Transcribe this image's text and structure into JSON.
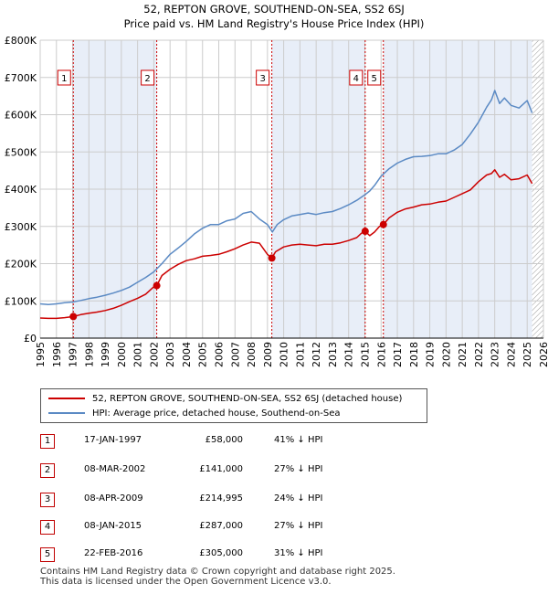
{
  "title_line1": "52, REPTON GROVE, SOUTHEND-ON-SEA, SS2 6SJ",
  "title_line2": "Price paid vs. HM Land Registry's House Price Index (HPI)",
  "colors": {
    "property": "#cc0000",
    "hpi": "#5b8ac4",
    "shade": "#e8eef8",
    "grid": "#cccccc",
    "vline": "#cc0000"
  },
  "legend": {
    "property_label": "52, REPTON GROVE, SOUTHEND-ON-SEA, SS2 6SJ (detached house)",
    "hpi_label": "HPI: Average price, detached house, Southend-on-Sea"
  },
  "sales": [
    {
      "num": "1",
      "date": "17-JAN-1997",
      "price": "£58,000",
      "hpi": "41% ↓ HPI"
    },
    {
      "num": "2",
      "date": "08-MAR-2002",
      "price": "£141,000",
      "hpi": "27% ↓ HPI"
    },
    {
      "num": "3",
      "date": "08-APR-2009",
      "price": "£214,995",
      "hpi": "24% ↓ HPI"
    },
    {
      "num": "4",
      "date": "08-JAN-2015",
      "price": "£287,000",
      "hpi": "27% ↓ HPI"
    },
    {
      "num": "5",
      "date": "22-FEB-2016",
      "price": "£305,000",
      "hpi": "31% ↓ HPI"
    }
  ],
  "footer": {
    "line1": "Contains HM Land Registry data © Crown copyright and database right 2025.",
    "line2": "This data is licensed under the Open Government Licence v3.0."
  },
  "chart_data": {
    "type": "line",
    "title": "52, REPTON GROVE, SOUTHEND-ON-SEA, SS2 6SJ",
    "subtitle": "Price paid vs. HM Land Registry's House Price Index (HPI)",
    "xlim": [
      1995,
      2026
    ],
    "ylim": [
      0,
      800000
    ],
    "y_ticks": [
      0,
      100000,
      200000,
      300000,
      400000,
      500000,
      600000,
      700000,
      800000
    ],
    "y_tick_labels": [
      "£0",
      "£100K",
      "£200K",
      "£300K",
      "£400K",
      "£500K",
      "£600K",
      "£700K",
      "£800K"
    ],
    "x_ticks": [
      1995,
      1996,
      1997,
      1998,
      1999,
      2000,
      2001,
      2002,
      2003,
      2004,
      2005,
      2006,
      2007,
      2008,
      2009,
      2010,
      2011,
      2012,
      2013,
      2014,
      2015,
      2016,
      2017,
      2018,
      2019,
      2020,
      2021,
      2022,
      2023,
      2024,
      2025,
      2026
    ],
    "x_tick_labels": [
      "1995",
      "1996",
      "1997",
      "1998",
      "1999",
      "2000",
      "2001",
      "2002",
      "2003",
      "2004",
      "2005",
      "2006",
      "2007",
      "2008",
      "2009",
      "2010",
      "2011",
      "2012",
      "2013",
      "2014",
      "2015",
      "2016",
      "2017",
      "2018",
      "2019",
      "2020",
      "2021",
      "2022",
      "2023",
      "2024",
      "2025",
      "2026"
    ],
    "shaded_ranges": [
      [
        1997.04,
        2002.18
      ],
      [
        2009.27,
        2015.02
      ],
      [
        2016.14,
        2025.3
      ]
    ],
    "hatched_after": 2025.3,
    "sale_markers": [
      {
        "label": "1",
        "x": 1997.04,
        "y": 58000
      },
      {
        "label": "2",
        "x": 2002.18,
        "y": 141000
      },
      {
        "label": "3",
        "x": 2009.27,
        "y": 214995
      },
      {
        "label": "4",
        "x": 2015.02,
        "y": 287000
      },
      {
        "label": "5",
        "x": 2016.14,
        "y": 305000
      }
    ],
    "series": [
      {
        "name": "52, REPTON GROVE, SOUTHEND-ON-SEA, SS2 6SJ (detached house)",
        "x": [
          1995.0,
          1995.5,
          1996.0,
          1996.5,
          1997.04,
          1997.5,
          1998.0,
          1998.5,
          1999.0,
          1999.5,
          2000.0,
          2000.5,
          2001.0,
          2001.5,
          2002.0,
          2002.18,
          2002.5,
          2003.0,
          2003.5,
          2004.0,
          2004.5,
          2005.0,
          2005.5,
          2006.0,
          2006.5,
          2007.0,
          2007.5,
          2008.0,
          2008.5,
          2009.0,
          2009.27,
          2009.5,
          2010.0,
          2010.5,
          2011.0,
          2011.5,
          2012.0,
          2012.5,
          2013.0,
          2013.5,
          2014.0,
          2014.5,
          2014.8,
          2015.02,
          2015.3,
          2015.6,
          2015.9,
          2016.14,
          2016.5,
          2017.0,
          2017.5,
          2018.0,
          2018.5,
          2019.0,
          2019.5,
          2020.0,
          2020.5,
          2021.0,
          2021.5,
          2022.0,
          2022.5,
          2022.8,
          2023.0,
          2023.3,
          2023.6,
          2024.0,
          2024.5,
          2025.0,
          2025.3
        ],
        "y": [
          54000,
          53000,
          53000,
          55000,
          58000,
          63000,
          67000,
          70000,
          74000,
          80000,
          88000,
          98000,
          107000,
          118000,
          138000,
          141000,
          168000,
          185000,
          198000,
          208000,
          213000,
          220000,
          222000,
          225000,
          232000,
          240000,
          250000,
          258000,
          255000,
          225000,
          214995,
          232000,
          245000,
          250000,
          252000,
          250000,
          248000,
          252000,
          252000,
          256000,
          262000,
          270000,
          282000,
          287000,
          275000,
          285000,
          300000,
          305000,
          323000,
          338000,
          347000,
          352000,
          358000,
          360000,
          365000,
          368000,
          378000,
          388000,
          398000,
          420000,
          438000,
          442000,
          452000,
          432000,
          440000,
          425000,
          428000,
          438000,
          415000
        ]
      },
      {
        "name": "HPI: Average price, detached house, Southend-on-Sea",
        "x": [
          1995.0,
          1995.5,
          1996.0,
          1996.5,
          1997.0,
          1997.5,
          1998.0,
          1998.5,
          1999.0,
          1999.5,
          2000.0,
          2000.5,
          2001.0,
          2001.5,
          2002.0,
          2002.5,
          2003.0,
          2003.5,
          2004.0,
          2004.5,
          2005.0,
          2005.5,
          2006.0,
          2006.5,
          2007.0,
          2007.5,
          2008.0,
          2008.5,
          2009.0,
          2009.3,
          2009.6,
          2010.0,
          2010.5,
          2011.0,
          2011.5,
          2012.0,
          2012.5,
          2013.0,
          2013.5,
          2014.0,
          2014.5,
          2015.0,
          2015.3,
          2015.6,
          2016.0,
          2016.5,
          2017.0,
          2017.5,
          2018.0,
          2018.5,
          2019.0,
          2019.5,
          2020.0,
          2020.5,
          2021.0,
          2021.5,
          2022.0,
          2022.5,
          2022.8,
          2023.0,
          2023.3,
          2023.6,
          2024.0,
          2024.5,
          2025.0,
          2025.3
        ],
        "y": [
          92000,
          90000,
          92000,
          95000,
          97000,
          101000,
          106000,
          110000,
          115000,
          121000,
          128000,
          137000,
          150000,
          163000,
          178000,
          200000,
          225000,
          242000,
          260000,
          280000,
          295000,
          305000,
          305000,
          315000,
          320000,
          335000,
          340000,
          320000,
          305000,
          285000,
          305000,
          318000,
          328000,
          332000,
          336000,
          332000,
          337000,
          340000,
          348000,
          358000,
          370000,
          385000,
          395000,
          410000,
          435000,
          455000,
          470000,
          480000,
          487000,
          488000,
          490000,
          495000,
          495000,
          505000,
          520000,
          548000,
          580000,
          620000,
          640000,
          665000,
          630000,
          645000,
          625000,
          618000,
          638000,
          605000
        ]
      }
    ]
  }
}
